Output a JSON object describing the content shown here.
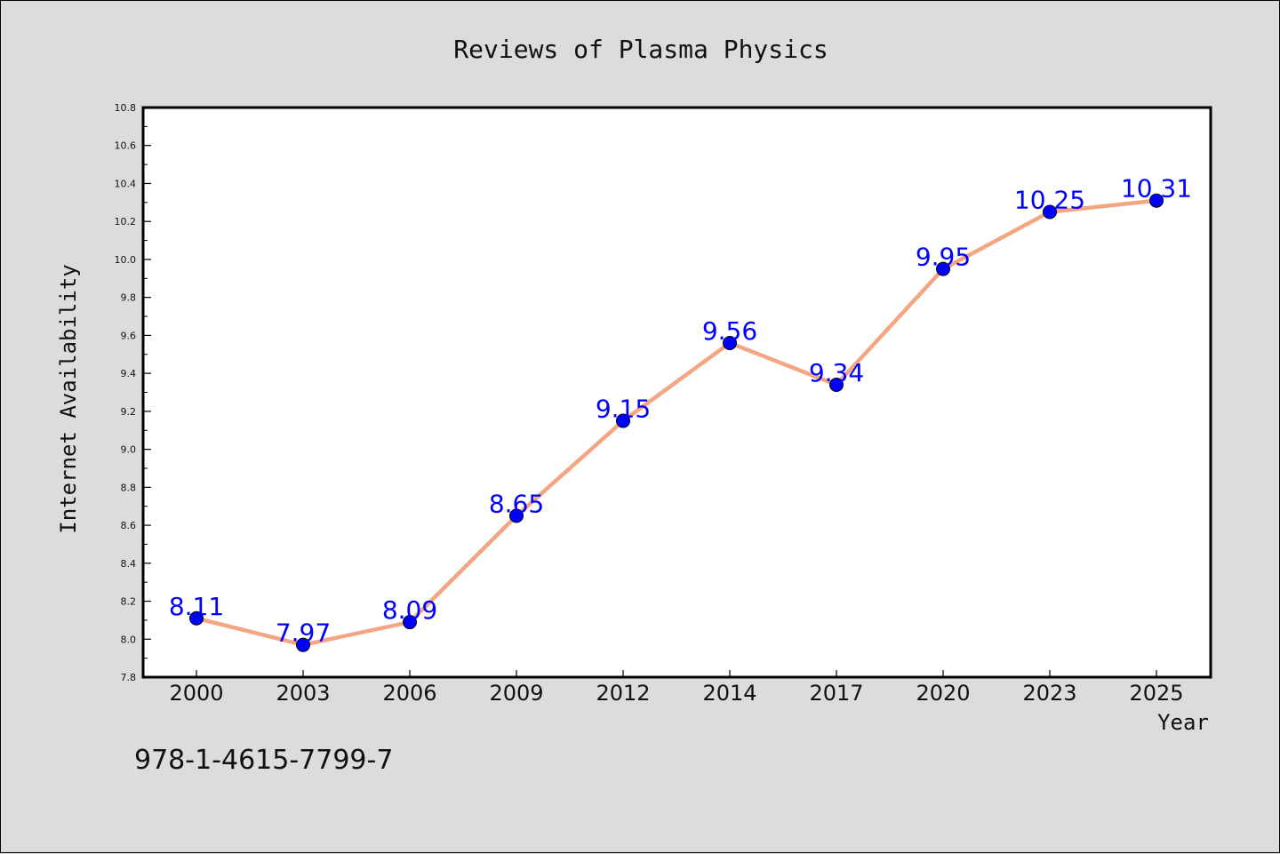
{
  "chart_data": {
    "type": "line",
    "title": "Reviews of Plasma Physics",
    "xlabel": "Year",
    "ylabel": "Internet Availability",
    "categories": [
      "2000",
      "2003",
      "2006",
      "2009",
      "2012",
      "2014",
      "2017",
      "2020",
      "2023",
      "2025"
    ],
    "series": [
      {
        "values": [
          8.11,
          7.97,
          8.09,
          8.65,
          9.15,
          9.56,
          9.34,
          9.95,
          10.25,
          10.31
        ],
        "data_labels": [
          "8.11",
          "7.97",
          "8.09",
          "8.65",
          "9.15",
          "9.56",
          "9.34",
          "9.95",
          "10.25",
          "10.31"
        ],
        "line_color": "#f4a582",
        "marker_color": "#0000ff"
      }
    ],
    "ylim": [
      7.8,
      10.8
    ],
    "yticks": [
      "7.8",
      "8.0",
      "8.2",
      "8.4",
      "8.6",
      "8.8",
      "9.0",
      "9.2",
      "9.4",
      "9.6",
      "9.8",
      "10.0",
      "10.2",
      "10.4",
      "10.6",
      "10.8"
    ],
    "grid": false,
    "legend": "none",
    "background_color": "#dcdcdc",
    "plot_background": "#ffffff"
  },
  "footer": {
    "isbn": "978-1-4615-7799-7"
  }
}
